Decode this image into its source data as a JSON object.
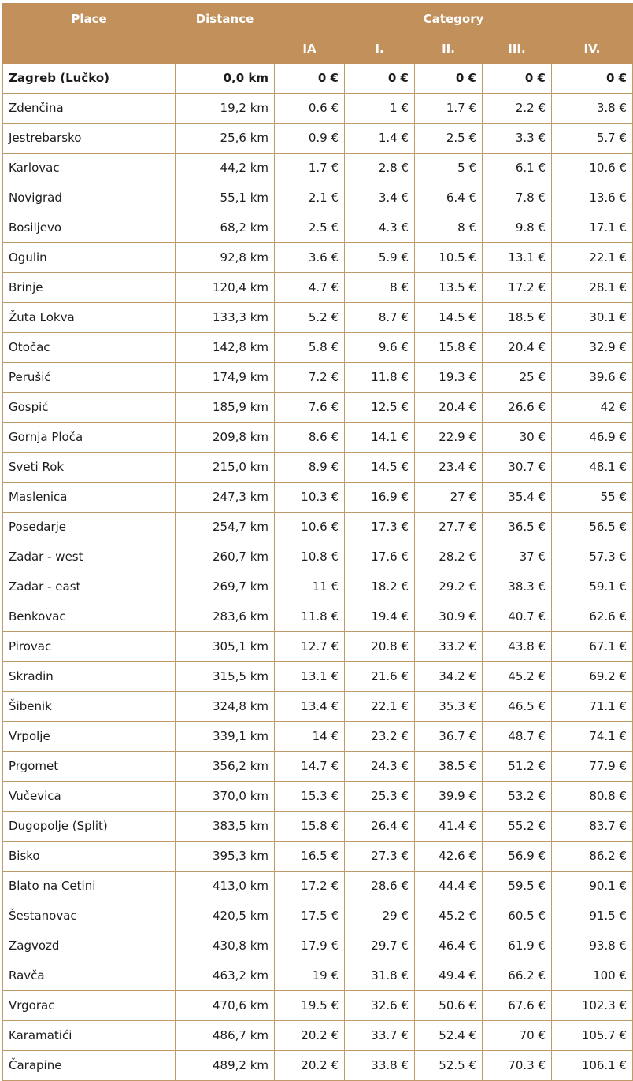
{
  "table": {
    "header": {
      "place": "Place",
      "distance": "Distance",
      "category": "Category",
      "subcolumns": [
        "IA",
        "I.",
        "II.",
        "III.",
        "IV."
      ]
    },
    "rows": [
      {
        "place": "Zagreb (Lučko)",
        "distance": "0,0 km",
        "prices": [
          "0 €",
          "0 €",
          "0 €",
          "0 €",
          "0 €"
        ],
        "bold": true
      },
      {
        "place": "Zdenčina",
        "distance": "19,2 km",
        "prices": [
          "0.6 €",
          "1 €",
          "1.7 €",
          "2.2 €",
          "3.8 €"
        ]
      },
      {
        "place": "Jestrebarsko",
        "distance": "25,6 km",
        "prices": [
          "0.9 €",
          "1.4 €",
          "2.5 €",
          "3.3 €",
          "5.7 €"
        ]
      },
      {
        "place": "Karlovac",
        "distance": "44,2 km",
        "prices": [
          "1.7 €",
          "2.8 €",
          "5 €",
          "6.1 €",
          "10.6 €"
        ]
      },
      {
        "place": "Novigrad",
        "distance": "55,1 km",
        "prices": [
          "2.1 €",
          "3.4 €",
          "6.4 €",
          "7.8 €",
          "13.6 €"
        ]
      },
      {
        "place": "Bosiljevo",
        "distance": "68,2 km",
        "prices": [
          "2.5 €",
          "4.3 €",
          "8 €",
          "9.8 €",
          "17.1 €"
        ]
      },
      {
        "place": "Ogulin",
        "distance": "92,8 km",
        "prices": [
          "3.6 €",
          "5.9 €",
          "10.5 €",
          "13.1 €",
          "22.1 €"
        ]
      },
      {
        "place": "Brinje",
        "distance": "120,4 km",
        "prices": [
          "4.7 €",
          "8 €",
          "13.5 €",
          "17.2 €",
          "28.1 €"
        ]
      },
      {
        "place": "Žuta Lokva",
        "distance": "133,3 km",
        "prices": [
          "5.2 €",
          "8.7 €",
          "14.5 €",
          "18.5 €",
          "30.1 €"
        ]
      },
      {
        "place": "Otočac",
        "distance": "142,8 km",
        "prices": [
          "5.8 €",
          "9.6 €",
          "15.8 €",
          "20.4 €",
          "32.9 €"
        ]
      },
      {
        "place": "Perušić",
        "distance": "174,9 km",
        "prices": [
          "7.2 €",
          "11.8 €",
          "19.3 €",
          "25 €",
          "39.6 €"
        ]
      },
      {
        "place": "Gospić",
        "distance": "185,9 km",
        "prices": [
          "7.6 €",
          "12.5 €",
          "20.4 €",
          "26.6 €",
          "42 €"
        ]
      },
      {
        "place": "Gornja Ploča",
        "distance": "209,8 km",
        "prices": [
          "8.6 €",
          "14.1 €",
          "22.9 €",
          "30 €",
          "46.9 €"
        ]
      },
      {
        "place": "Sveti Rok",
        "distance": "215,0 km",
        "prices": [
          "8.9 €",
          "14.5 €",
          "23.4 €",
          "30.7 €",
          "48.1 €"
        ]
      },
      {
        "place": "Maslenica",
        "distance": "247,3 km",
        "prices": [
          "10.3 €",
          "16.9 €",
          "27 €",
          "35.4 €",
          "55 €"
        ]
      },
      {
        "place": "Posedarje",
        "distance": "254,7 km",
        "prices": [
          "10.6 €",
          "17.3 €",
          "27.7 €",
          "36.5 €",
          "56.5 €"
        ]
      },
      {
        "place": "Zadar - west",
        "distance": "260,7 km",
        "prices": [
          "10.8 €",
          "17.6 €",
          "28.2 €",
          "37 €",
          "57.3 €"
        ]
      },
      {
        "place": "Zadar - east",
        "distance": "269,7 km",
        "prices": [
          "11 €",
          "18.2 €",
          "29.2 €",
          "38.3 €",
          "59.1 €"
        ]
      },
      {
        "place": "Benkovac",
        "distance": "283,6 km",
        "prices": [
          "11.8 €",
          "19.4 €",
          "30.9 €",
          "40.7 €",
          "62.6 €"
        ]
      },
      {
        "place": "Pirovac",
        "distance": "305,1 km",
        "prices": [
          "12.7 €",
          "20.8 €",
          "33.2 €",
          "43.8 €",
          "67.1 €"
        ]
      },
      {
        "place": "Skradin",
        "distance": "315,5 km",
        "prices": [
          "13.1 €",
          "21.6 €",
          "34.2 €",
          "45.2 €",
          "69.2 €"
        ]
      },
      {
        "place": "Šibenik",
        "distance": "324,8 km",
        "prices": [
          "13.4 €",
          "22.1 €",
          "35.3 €",
          "46.5 €",
          "71.1 €"
        ]
      },
      {
        "place": "Vrpolje",
        "distance": "339,1 km",
        "prices": [
          "14 €",
          "23.2 €",
          "36.7 €",
          "48.7 €",
          "74.1 €"
        ]
      },
      {
        "place": "Prgomet",
        "distance": "356,2 km",
        "prices": [
          "14.7 €",
          "24.3 €",
          "38.5 €",
          "51.2 €",
          "77.9 €"
        ]
      },
      {
        "place": "Vučevica",
        "distance": "370,0 km",
        "prices": [
          "15.3 €",
          "25.3 €",
          "39.9 €",
          "53.2 €",
          "80.8 €"
        ]
      },
      {
        "place": "Dugopolje (Split)",
        "distance": "383,5 km",
        "prices": [
          "15.8 €",
          "26.4 €",
          "41.4 €",
          "55.2 €",
          "83.7 €"
        ]
      },
      {
        "place": "Bisko",
        "distance": "395,3 km",
        "prices": [
          "16.5 €",
          "27.3 €",
          "42.6 €",
          "56.9 €",
          "86.2 €"
        ]
      },
      {
        "place": "Blato na Cetini",
        "distance": "413,0 km",
        "prices": [
          "17.2 €",
          "28.6 €",
          "44.4 €",
          "59.5 €",
          "90.1 €"
        ]
      },
      {
        "place": "Šestanovac",
        "distance": "420,5 km",
        "prices": [
          "17.5 €",
          "29 €",
          "45.2 €",
          "60.5 €",
          "91.5 €"
        ]
      },
      {
        "place": "Zagvozd",
        "distance": "430,8 km",
        "prices": [
          "17.9 €",
          "29.7 €",
          "46.4 €",
          "61.9 €",
          "93.8 €"
        ]
      },
      {
        "place": "Ravča",
        "distance": "463,2 km",
        "prices": [
          "19 €",
          "31.8 €",
          "49.4 €",
          "66.2 €",
          "100 €"
        ]
      },
      {
        "place": "Vrgorac",
        "distance": "470,6 km",
        "prices": [
          "19.5 €",
          "32.6 €",
          "50.6 €",
          "67.6 €",
          "102.3 €"
        ]
      },
      {
        "place": "Karamatići",
        "distance": "486,7 km",
        "prices": [
          "20.2 €",
          "33.7 €",
          "52.4 €",
          "70 €",
          "105.7 €"
        ]
      },
      {
        "place": "Čarapine",
        "distance": "489,2 km",
        "prices": [
          "20.2 €",
          "33.8 €",
          "52.5 €",
          "70.3 €",
          "106.1 €"
        ]
      }
    ]
  },
  "colors": {
    "header_background": "#c2905a",
    "header_text": "#ffffff",
    "grid_border": "#bd9a67",
    "cell_text": "#1c1c1c"
  }
}
